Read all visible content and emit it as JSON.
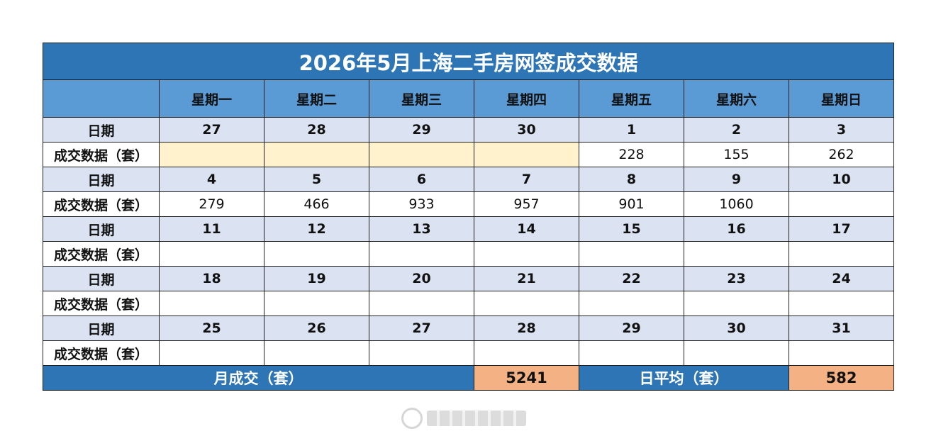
{
  "title": "2026年5月上海二手房网签成交数据",
  "header": {
    "corner": "",
    "weekdays": [
      "星期一",
      "星期二",
      "星期三",
      "星期四",
      "星期五",
      "星期六",
      "星期日"
    ]
  },
  "labels": {
    "date": "日期",
    "volume": "成交数据（套）"
  },
  "weeks": [
    {
      "dates": [
        "27",
        "28",
        "29",
        "30",
        "1",
        "2",
        "3"
      ],
      "values": [
        "",
        "",
        "",
        "",
        "228",
        "155",
        "262"
      ],
      "pending": [
        true,
        true,
        true,
        true,
        false,
        false,
        false
      ]
    },
    {
      "dates": [
        "4",
        "5",
        "6",
        "7",
        "8",
        "9",
        "10"
      ],
      "values": [
        "279",
        "466",
        "933",
        "957",
        "901",
        "1060",
        ""
      ],
      "pending": [
        false,
        false,
        false,
        false,
        false,
        false,
        false
      ]
    },
    {
      "dates": [
        "11",
        "12",
        "13",
        "14",
        "15",
        "16",
        "17"
      ],
      "values": [
        "",
        "",
        "",
        "",
        "",
        "",
        ""
      ],
      "pending": [
        false,
        false,
        false,
        false,
        false,
        false,
        false
      ]
    },
    {
      "dates": [
        "18",
        "19",
        "20",
        "21",
        "22",
        "23",
        "24"
      ],
      "values": [
        "",
        "",
        "",
        "",
        "",
        "",
        ""
      ],
      "pending": [
        false,
        false,
        false,
        false,
        false,
        false,
        false
      ]
    },
    {
      "dates": [
        "25",
        "26",
        "27",
        "28",
        "29",
        "30",
        "31"
      ],
      "values": [
        "",
        "",
        "",
        "",
        "",
        "",
        ""
      ],
      "pending": [
        false,
        false,
        false,
        false,
        false,
        false,
        false
      ]
    }
  ],
  "footer": {
    "monthly_label": "月成交（套）",
    "monthly_value": "5241",
    "daily_avg_label": "日平均（套）",
    "daily_avg_value": "582"
  },
  "colors": {
    "title_bg": "#2e75b6",
    "header_bg": "#5b9bd5",
    "date_row_bg": "#dbe3f2",
    "pending_bg": "#fff2cc",
    "highlight_bg": "#f4b183"
  },
  "watermark_icon": "weibo-logo-icon"
}
